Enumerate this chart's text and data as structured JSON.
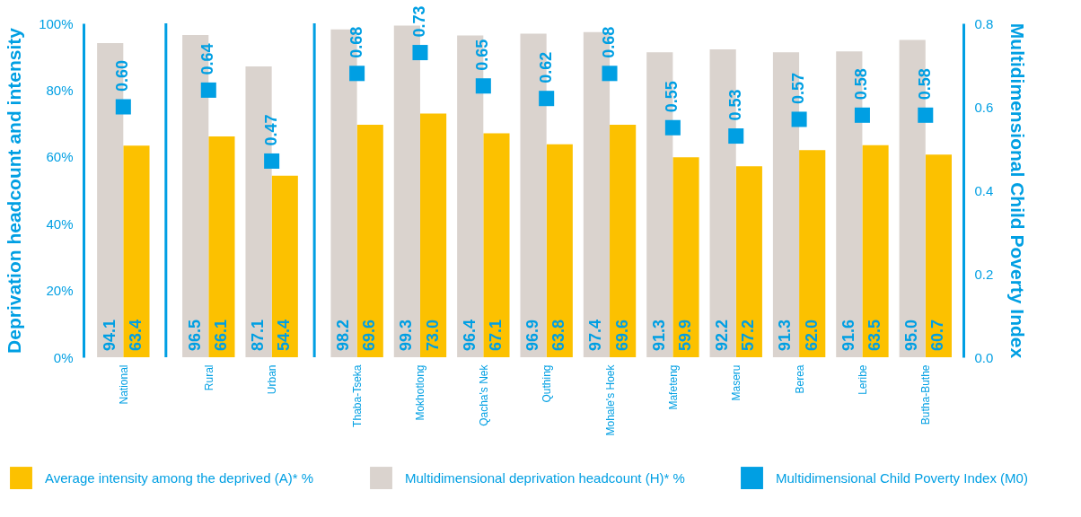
{
  "chart_data": {
    "type": "bar",
    "ylabel": "Deprivation headcount and intensity",
    "y2label": "Multidimensional Child Poverty Index",
    "categories": [
      "National",
      "Rural",
      "Urban",
      "Thaba-Tseka",
      "Mokhotlong",
      "Qacha's Nek",
      "Quthing",
      "Mohale's Hoek",
      "Mafeteng",
      "Maseru",
      "Berea",
      "Leribe",
      "Butha-Buthe"
    ],
    "series": [
      {
        "name": "Average intensity among the deprived (A)* %",
        "color": "#fcc100",
        "values": [
          63.4,
          66.1,
          54.4,
          69.6,
          73.0,
          67.1,
          63.8,
          69.6,
          59.9,
          57.2,
          62.0,
          63.5,
          60.7
        ],
        "value_labels": [
          "63.4",
          "66.1",
          "54.4",
          "69.6",
          "73.0",
          "67.1",
          "63.8",
          "69.6",
          "59.9",
          "57.2",
          "62.0",
          "63.5",
          "60.7"
        ]
      },
      {
        "name": "Multidimensional deprivation headcount (H)* %",
        "color": "#dad3ce",
        "values": [
          94.1,
          96.5,
          87.1,
          98.2,
          99.3,
          96.4,
          96.9,
          97.4,
          91.3,
          92.2,
          91.3,
          91.6,
          95.0
        ],
        "value_labels": [
          "94.1",
          "96.5",
          "87.1",
          "98.2",
          "99.3",
          "96.4",
          "96.9",
          "97.4",
          "91.3",
          "92.2",
          "91.3",
          "91.6",
          "95.0"
        ]
      },
      {
        "name": "Multidimensional Child Poverty Index (M0)",
        "type": "scatter",
        "axis": "y2",
        "marker": "square",
        "color": "#009fe3",
        "values": [
          0.6,
          0.64,
          0.47,
          0.68,
          0.73,
          0.65,
          0.62,
          0.68,
          0.55,
          0.53,
          0.57,
          0.58,
          0.58
        ],
        "value_labels": [
          "0.60",
          "0.64",
          "0.47",
          "0.68",
          "0.73",
          "0.65",
          "0.62",
          "0.68",
          "0.55",
          "0.53",
          "0.57",
          "0.58",
          "0.58"
        ]
      }
    ],
    "ylim": [
      0,
      100
    ],
    "yticks": [
      {
        "value": 0,
        "label": "0%"
      },
      {
        "value": 20,
        "label": "20%"
      },
      {
        "value": 40,
        "label": "40%"
      },
      {
        "value": 60,
        "label": "60%"
      },
      {
        "value": 80,
        "label": "80%"
      },
      {
        "value": 100,
        "label": "100%"
      }
    ],
    "y2lim": [
      0,
      0.8
    ],
    "y2ticks": [
      {
        "value": 0,
        "label": "0.0"
      },
      0.2,
      0.4,
      0.6,
      0.8
    ],
    "grid": false,
    "legend": "bottom"
  }
}
